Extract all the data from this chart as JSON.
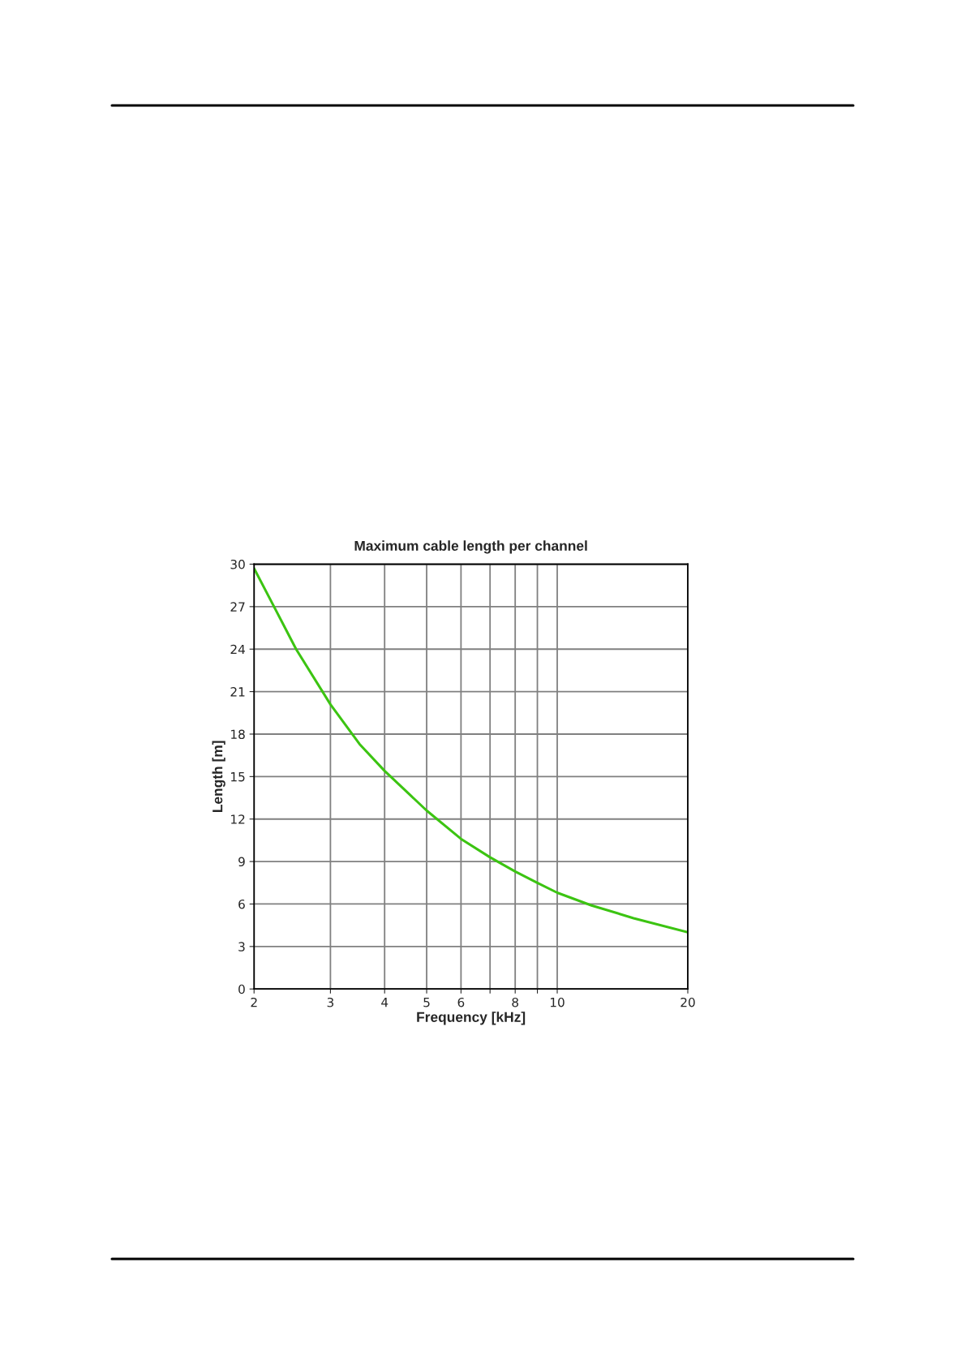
{
  "chart_data": {
    "type": "line",
    "title": "Maximum cable length per channel",
    "xlabel": "Frequency [kHz]",
    "ylabel": "Length [m]",
    "x": [
      2,
      2.25,
      2.5,
      3,
      3.5,
      4,
      5,
      6,
      7,
      8,
      9,
      10,
      12,
      15,
      20
    ],
    "series": [
      {
        "color": "#3cc412",
        "values": [
          29.7,
          26.7,
          24.0,
          20.1,
          17.3,
          15.4,
          12.6,
          10.6,
          9.3,
          8.3,
          7.5,
          6.8,
          5.9,
          5.0,
          4.0
        ]
      }
    ],
    "log": "x",
    "xlim": [
      2,
      20
    ],
    "xticks": [
      2,
      3,
      4,
      5,
      6,
      {
        "value": 7,
        "label": null
      },
      8,
      {
        "value": 9,
        "label": null
      },
      10,
      20
    ],
    "ylim": [
      0,
      30
    ],
    "yticks": [
      0,
      3,
      6,
      9,
      12,
      15,
      18,
      21,
      24,
      27,
      30
    ],
    "grid": true,
    "marker": "none",
    "line_style": "solid"
  }
}
